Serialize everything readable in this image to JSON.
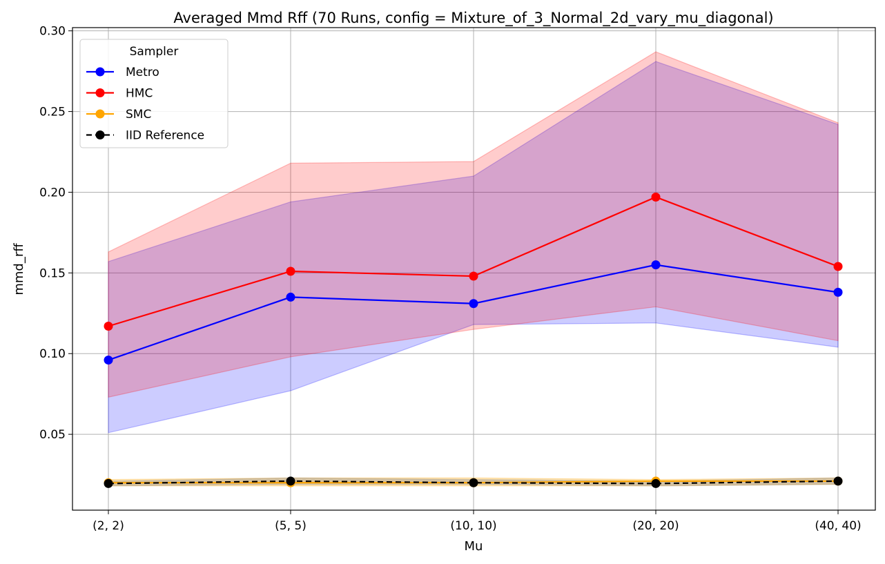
{
  "chart_data": {
    "type": "line",
    "title": "Averaged Mmd Rff (70 Runs, config = Mixture_of_3_Normal_2d_vary_mu_diagonal)",
    "xlabel": "Mu",
    "ylabel": "mmd_rff",
    "categories": [
      "(2, 2)",
      "(5, 5)",
      "(10, 10)",
      "(20, 20)",
      "(40, 40)"
    ],
    "ylim": [
      0.003,
      0.302
    ],
    "yticks": [
      0.05,
      0.1,
      0.15,
      0.2,
      0.25,
      0.3
    ],
    "ytick_labels": [
      "0.05",
      "0.10",
      "0.15",
      "0.20",
      "0.25",
      "0.30"
    ],
    "grid": true,
    "legend": {
      "title": "Sampler",
      "placement": "top-left"
    },
    "series": [
      {
        "name": "Metro",
        "color": "#0000ff",
        "dashed": false,
        "values": [
          0.096,
          0.135,
          0.131,
          0.155,
          0.138
        ],
        "lower": [
          0.051,
          0.077,
          0.118,
          0.119,
          0.104
        ],
        "upper": [
          0.157,
          0.194,
          0.21,
          0.281,
          0.242
        ],
        "band_color": "#0000ff",
        "band_opacity": 0.2
      },
      {
        "name": "HMC",
        "color": "#ff0000",
        "dashed": false,
        "values": [
          0.117,
          0.151,
          0.148,
          0.197,
          0.154
        ],
        "lower": [
          0.073,
          0.098,
          0.115,
          0.129,
          0.108
        ],
        "upper": [
          0.163,
          0.218,
          0.219,
          0.287,
          0.243
        ],
        "band_color": "#ff0000",
        "band_opacity": 0.2
      },
      {
        "name": "SMC",
        "color": "#ffa500",
        "dashed": false,
        "values": [
          0.02,
          0.02,
          0.02,
          0.021,
          0.021
        ],
        "lower": [
          0.018,
          0.018,
          0.018,
          0.018,
          0.019
        ],
        "upper": [
          0.022,
          0.023,
          0.023,
          0.022,
          0.023
        ],
        "band_color": "#ffa500",
        "band_opacity": 0.3
      },
      {
        "name": "IID Reference",
        "color": "#000000",
        "dashed": true,
        "values": [
          0.0195,
          0.021,
          0.02,
          0.0195,
          0.021
        ],
        "lower": [
          0.018,
          0.019,
          0.019,
          0.018,
          0.019
        ],
        "upper": [
          0.021,
          0.023,
          0.022,
          0.021,
          0.023
        ],
        "band_color": "#808080",
        "band_opacity": 0.35
      }
    ]
  }
}
